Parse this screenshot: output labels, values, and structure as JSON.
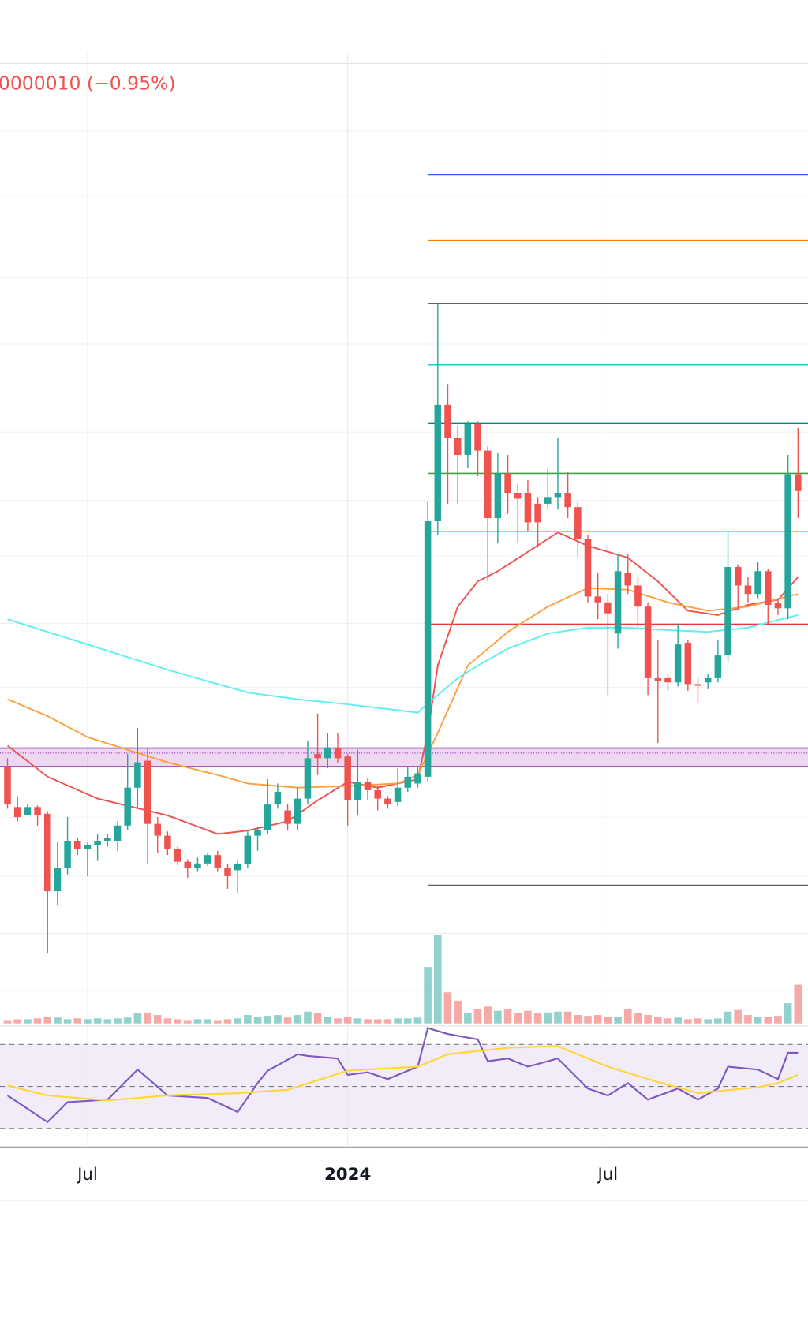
{
  "chart_data": [
    {
      "type": "candlestick",
      "change_label": "0000010 (−0.95%)",
      "change_color": "#ef5350",
      "xlim": [
        -0.75,
        80
      ],
      "xticks": [
        {
          "value": 8,
          "label": "Jul"
        },
        {
          "value": 34,
          "label": "2024"
        },
        {
          "value": 60,
          "label": "Jul"
        }
      ],
      "ylim": [
        0,
        115
      ],
      "ygrid": [
        106,
        98.3,
        88.6,
        80.7,
        70.2,
        62.1,
        55.5,
        47.5,
        39.9,
        32.2,
        24.5,
        17.5,
        10.7,
        3.9
      ],
      "grid": true,
      "up_color": "#26a69a",
      "down_color": "#ef5350",
      "x": [
        0,
        1,
        2,
        3,
        4,
        5,
        6,
        7,
        8,
        9,
        10,
        11,
        12,
        13,
        14,
        15,
        16,
        17,
        18,
        19,
        20,
        21,
        22,
        23,
        24,
        25,
        26,
        27,
        28,
        29,
        30,
        31,
        32,
        33,
        34,
        35,
        36,
        37,
        38,
        39,
        40,
        41,
        42,
        43,
        44,
        45,
        46,
        47,
        48,
        49,
        50,
        51,
        52,
        53,
        54,
        55,
        56,
        57,
        58,
        59,
        60,
        61,
        62,
        63,
        64,
        65,
        66,
        67,
        68,
        69,
        70,
        71,
        72,
        73,
        74,
        75,
        76,
        77,
        78,
        79
      ],
      "open": [
        30.5,
        25.7,
        24.7,
        25.7,
        24.9,
        15.7,
        18.5,
        21.7,
        20.7,
        21.2,
        21.7,
        21.7,
        23.5,
        28,
        31.2,
        23.7,
        22.3,
        20.7,
        19.2,
        18.5,
        19,
        20,
        18.5,
        18.2,
        18.9,
        22.3,
        23,
        26,
        25.3,
        23.7,
        26.7,
        32,
        31.5,
        32.7,
        31.7,
        26.5,
        28.7,
        27.7,
        26.7,
        26.3,
        28,
        28.5,
        29.3,
        59.7,
        73.5,
        69.5,
        67.5,
        71.2,
        68,
        60,
        65.3,
        63,
        63,
        61.7,
        61.7,
        62.5,
        63,
        61.3,
        57.5,
        50.7,
        50,
        46.3,
        53.5,
        52,
        49.5,
        41,
        41,
        40.5,
        45.2,
        40.3,
        40.5,
        41,
        43.7,
        54.2,
        52,
        51,
        53.7,
        49.9,
        49.3,
        65.2
      ],
      "high": [
        31.5,
        27,
        26,
        25.9,
        25.2,
        21.5,
        24.5,
        22,
        21.5,
        22.5,
        22.5,
        24,
        32,
        35.1,
        32.7,
        24.5,
        22.8,
        21,
        19.5,
        19.7,
        20.3,
        20.5,
        19,
        19.5,
        23,
        23.3,
        29,
        28.5,
        26,
        28,
        33.5,
        36.8,
        34.5,
        34.5,
        32,
        32.5,
        29.2,
        28.2,
        27,
        30.3,
        30.5,
        30.5,
        62,
        85.5,
        75.9,
        71,
        71.5,
        71.5,
        68.5,
        67.7,
        67.5,
        64,
        64.5,
        62.5,
        66,
        69.5,
        65.5,
        62,
        58,
        53.5,
        51,
        55.7,
        55.7,
        53,
        50,
        45.5,
        41.5,
        47.5,
        45.5,
        41,
        41.5,
        45.5,
        58.5,
        54.5,
        53,
        54.8,
        54,
        50.5,
        67.5,
        70.7
      ],
      "low": [
        25.5,
        24,
        24.7,
        23.5,
        8.3,
        14,
        17.7,
        20,
        17.5,
        19.3,
        21,
        20.5,
        23,
        25.5,
        19,
        20.2,
        20,
        18.8,
        17.3,
        18,
        18.7,
        18,
        16,
        15.5,
        18.5,
        20.5,
        22.5,
        25.5,
        23,
        23,
        26,
        29.5,
        30.3,
        31,
        23.5,
        24.7,
        26.5,
        25.3,
        25.5,
        25.8,
        27.5,
        28,
        28.8,
        58,
        61.7,
        61.7,
        66,
        65,
        52.5,
        57,
        60.5,
        57,
        58.5,
        56.5,
        61,
        61,
        60,
        55.5,
        50,
        48,
        39,
        44.5,
        51,
        47,
        39,
        33.3,
        39.5,
        40,
        39.5,
        38,
        39.7,
        40.5,
        43,
        49.1,
        50,
        50.5,
        47.3,
        48.5,
        48,
        60
      ],
      "close": [
        26,
        24.5,
        25.7,
        24.7,
        15.7,
        18.5,
        21.7,
        20.7,
        21.2,
        21.7,
        22,
        23.5,
        28,
        31,
        23.7,
        22.3,
        20.7,
        19.2,
        18.5,
        19,
        20,
        18.5,
        17.5,
        18.9,
        22.3,
        23,
        26,
        27.5,
        23.7,
        26.7,
        31.5,
        31.5,
        32.7,
        31.5,
        26.5,
        28.7,
        27.7,
        26.7,
        26,
        28,
        29.3,
        29.7,
        59.7,
        73.5,
        69.5,
        67.5,
        71.2,
        68,
        60,
        65.3,
        63,
        62.3,
        59.5,
        59.5,
        62.5,
        63,
        61.3,
        57.5,
        50.7,
        50,
        48.7,
        53.7,
        52,
        49.5,
        41,
        40.7,
        40.5,
        45,
        40.3,
        40.1,
        41,
        43.7,
        54.2,
        52,
        51,
        53.7,
        49.7,
        49.3,
        65.2,
        63.3
      ],
      "moving_averages": [
        {
          "color": "#ef5350",
          "x": [
            0,
            4,
            9,
            16,
            21,
            24,
            28,
            31,
            34,
            37,
            41,
            42,
            43,
            45,
            47,
            49,
            52,
            55,
            58,
            62,
            65,
            68,
            71,
            74,
            77,
            79
          ],
          "values": [
            33,
            29.3,
            26.7,
            24.7,
            22.5,
            22.9,
            24,
            26.5,
            28.7,
            28,
            29,
            34.5,
            42.5,
            49.5,
            52.5,
            53.7,
            56,
            58.3,
            56.7,
            55.3,
            52.5,
            49,
            48.5,
            49.7,
            50.3,
            53
          ]
        },
        {
          "color": "#ffa040",
          "x": [
            0,
            4,
            8,
            12,
            16,
            21,
            24,
            29,
            34,
            39,
            41,
            43,
            46,
            50,
            54,
            58,
            62,
            66,
            70,
            74,
            79
          ],
          "values": [
            38.5,
            36.5,
            34,
            32.5,
            31,
            29.5,
            28.5,
            28,
            28.2,
            28.5,
            29.5,
            34.5,
            42.5,
            46.5,
            49.5,
            51.7,
            51.5,
            50,
            49,
            49.5,
            51
          ]
        },
        {
          "color": "#5ef0f0",
          "x": [
            0,
            4,
            8,
            12,
            16,
            21,
            24,
            29,
            34,
            39,
            41,
            42,
            45,
            47,
            50,
            54,
            58,
            62,
            66,
            70,
            74,
            79
          ],
          "values": [
            48,
            46.5,
            45,
            43.5,
            42,
            40.3,
            39.3,
            38.5,
            37.9,
            37.2,
            36.9,
            38,
            41,
            42.5,
            44.5,
            46.3,
            47,
            47,
            46.7,
            46.5,
            47,
            48.5
          ]
        }
      ],
      "levels": [
        {
          "value": 100.8,
          "color": "#2962ff"
        },
        {
          "value": 93,
          "color": "#f57c00"
        },
        {
          "value": 85.5,
          "color": "#616161"
        },
        {
          "value": 78.2,
          "color": "#26c6da"
        },
        {
          "value": 71.3,
          "color": "#00897b"
        },
        {
          "value": 65.3,
          "color": "#43a047"
        },
        {
          "value": 58.4,
          "color": "#fb8c00"
        },
        {
          "value": 47.4,
          "color": "#e53935"
        },
        {
          "value": 16.4,
          "color": "#616161"
        }
      ],
      "zone": {
        "low": 30.5,
        "high": 32.7,
        "color": "#9c27b0"
      }
    },
    {
      "type": "bar",
      "ylim": [
        0,
        107
      ],
      "values": [
        4,
        5,
        5,
        6,
        8,
        7,
        5,
        6,
        5,
        6,
        5,
        6,
        7,
        12,
        13,
        10,
        6,
        5,
        4,
        5,
        5,
        4,
        5,
        6,
        10,
        8,
        9,
        10,
        7,
        10,
        14,
        12,
        8,
        6,
        8,
        6,
        5,
        5,
        5,
        6,
        6,
        7,
        67,
        105,
        37,
        27,
        12,
        17,
        20,
        15,
        17,
        12,
        15,
        12,
        13,
        14,
        14,
        10,
        9,
        10,
        8,
        8,
        17,
        12,
        10,
        8,
        6,
        7,
        5,
        6,
        5,
        6,
        14,
        16,
        10,
        8,
        8,
        9,
        24,
        46
      ]
    },
    {
      "type": "line",
      "ylim": [
        21,
        78
      ],
      "levels": [
        70,
        50,
        30
      ],
      "band": [
        30,
        70
      ],
      "band_color": "#ede7f6",
      "series": [
        {
          "color": "#7e57c2",
          "x": [
            0,
            4,
            6,
            10,
            13,
            16,
            20,
            23,
            25,
            26,
            29,
            30,
            33,
            34,
            36,
            38,
            41,
            42,
            44,
            47,
            48,
            50,
            52,
            55,
            58,
            60,
            62,
            64,
            67,
            69,
            71,
            72,
            75,
            77,
            78,
            79
          ],
          "values": [
            45.7,
            33,
            42.5,
            43.7,
            58,
            45.7,
            44.5,
            37.8,
            51.6,
            57.5,
            65.3,
            64.5,
            63.3,
            55.5,
            56.7,
            53.5,
            59.4,
            77.8,
            75,
            72.4,
            62,
            63.3,
            59.4,
            63.3,
            49,
            45.7,
            51.6,
            43.7,
            49,
            43.7,
            49,
            59.4,
            58,
            53.5,
            66,
            66
          ]
        },
        {
          "color": "#fdd835",
          "x": [
            0,
            4,
            10,
            16,
            23,
            28,
            34,
            41,
            44,
            50,
            55,
            60,
            64,
            69,
            75,
            77,
            79
          ],
          "values": [
            50.4,
            45.7,
            43.3,
            45.7,
            46.8,
            48.4,
            57.5,
            59.4,
            65.3,
            68.4,
            69.2,
            59.4,
            53.5,
            46.8,
            49.6,
            51.6,
            55.5
          ]
        }
      ]
    }
  ]
}
